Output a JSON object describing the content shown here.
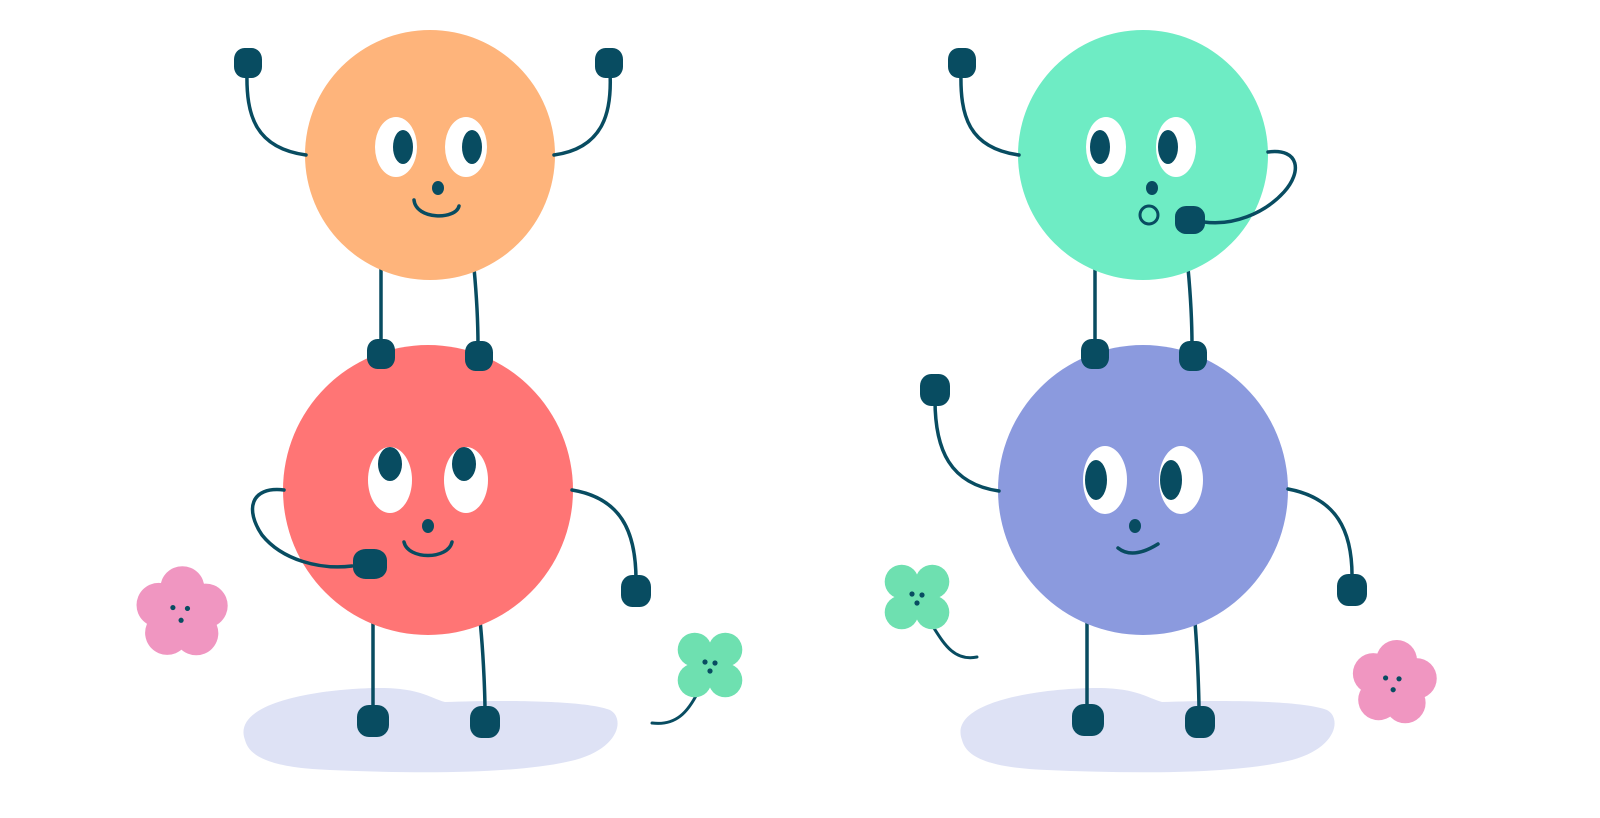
{
  "palette": {
    "background": "#ffffff",
    "outline": "#084c61",
    "orange": "#feb47b",
    "coral": "#ff7575",
    "mint": "#6eecc4",
    "periwinkle": "#8b9ade",
    "shadow": "#dee2f5",
    "pink_flower": "#f096c1",
    "green_flower": "#6ee0b0",
    "eye_white": "#ffffff"
  },
  "characters": [
    {
      "id": "orange-top",
      "color": "orange",
      "expression": "smile",
      "pose": "both-arms-raised"
    },
    {
      "id": "coral-bottom",
      "color": "coral",
      "expression": "smile",
      "pose": "hand-on-belly"
    },
    {
      "id": "mint-top",
      "color": "mint",
      "expression": "surprised",
      "pose": "hand-over-mouth"
    },
    {
      "id": "periwinkle-bottom",
      "color": "periwinkle",
      "expression": "smirk",
      "pose": "waving"
    }
  ],
  "decorations": [
    {
      "type": "flower",
      "color": "pink_flower"
    },
    {
      "type": "clover",
      "color": "green_flower"
    },
    {
      "type": "clover",
      "color": "green_flower"
    },
    {
      "type": "flower",
      "color": "pink_flower"
    }
  ]
}
